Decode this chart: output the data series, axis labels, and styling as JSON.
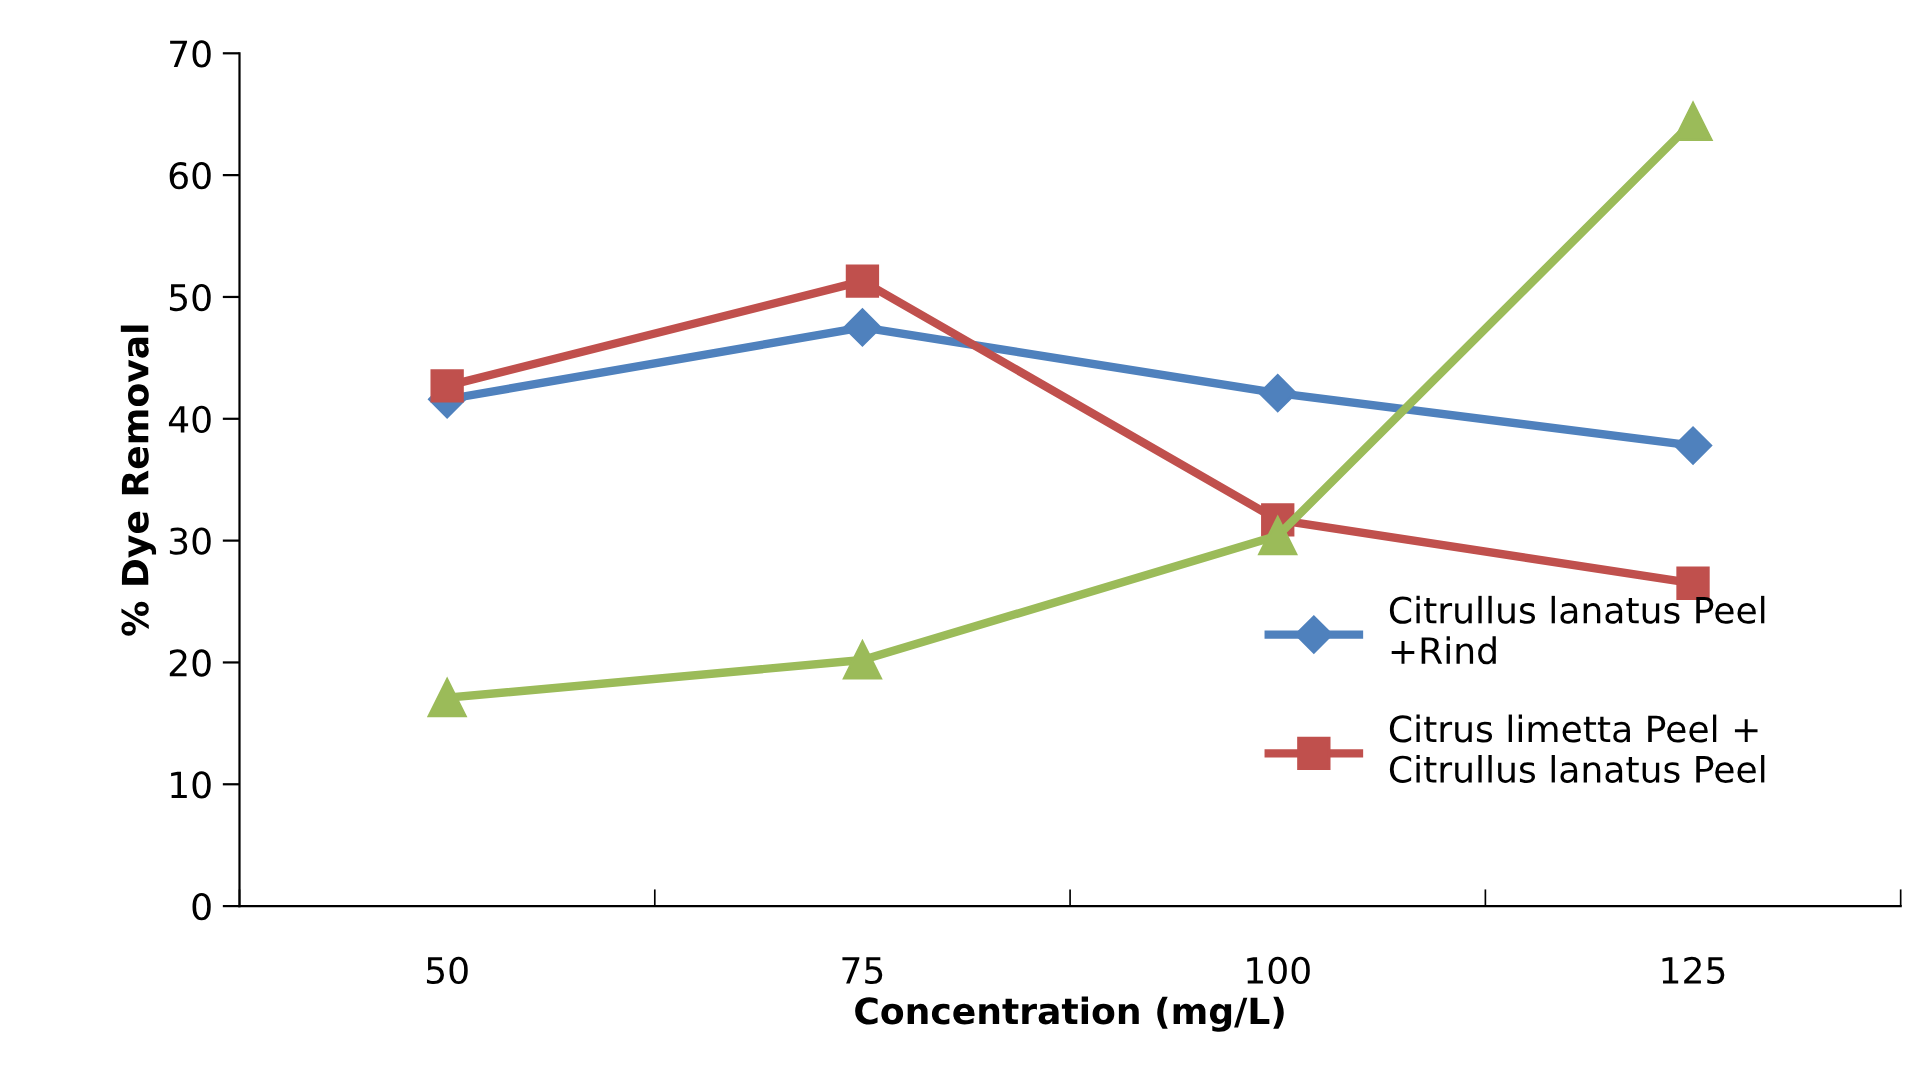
{
  "chart_data": {
    "type": "line",
    "xlabel": "Concentration (mg/L)",
    "ylabel": "% Dye Removal",
    "categories": [
      "50",
      "75",
      "100",
      "125"
    ],
    "series": [
      {
        "name": "Citrullus lanatus Peel\n+Rind",
        "color": "#4f81bd",
        "marker": "diamond",
        "values": [
          41.6,
          47.5,
          42.1,
          37.8
        ]
      },
      {
        "name": "Citrus limetta Peel +\nCitrullus lanatus Peel",
        "color": "#c0504d",
        "marker": "square",
        "values": [
          42.7,
          51.3,
          31.7,
          26.5
        ]
      },
      {
        "color": "#9bbb59",
        "marker": "triangle",
        "values": [
          17.1,
          20.2,
          30.4,
          64.4
        ]
      }
    ],
    "ylim": [
      0,
      70
    ],
    "yticks": [
      0,
      10,
      20,
      30,
      40,
      50,
      60,
      70
    ],
    "grid": false,
    "legend": "right",
    "line_style": "solid"
  }
}
